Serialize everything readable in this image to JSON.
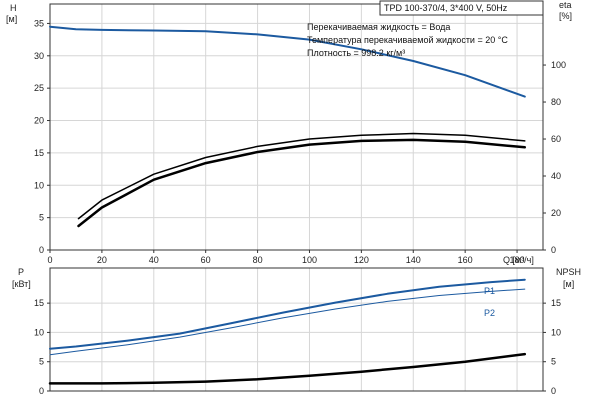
{
  "chart_data": [
    {
      "type": "line",
      "panel": "top",
      "title": "TPD 100-370/4, 3*400 V, 50Hz",
      "annotations": [
        "Перекачиваемая жидкость = Вода",
        "Температура перекачиваемой жидкости = 20 °C",
        "Плотность = 998.2 кг/м³"
      ],
      "xlabel": "Q [м³/ч]",
      "ylabel_left": [
        "H",
        "[м]"
      ],
      "ylabel_right": [
        "eta",
        "[%]"
      ],
      "xlim": [
        0,
        190
      ],
      "ylim_left": [
        0,
        38
      ],
      "ylim_right": [
        0,
        133
      ],
      "xticks": [
        0,
        20,
        40,
        60,
        80,
        100,
        120,
        140,
        160,
        180
      ],
      "yticks_left": [
        0,
        5,
        10,
        15,
        20,
        25,
        30,
        35
      ],
      "yticks_right": [
        0,
        20,
        40,
        60,
        80,
        100
      ],
      "grid": true,
      "series": [
        {
          "axis": "left",
          "color": "#1c5aa0",
          "width": 2,
          "x": [
            0,
            10,
            20,
            40,
            60,
            80,
            100,
            120,
            140,
            160,
            183
          ],
          "y": [
            34.5,
            34.1,
            34.0,
            33.9,
            33.8,
            33.3,
            32.5,
            31.0,
            29.2,
            27.0,
            23.7
          ]
        },
        {
          "axis": "right",
          "color": "#000000",
          "width": 1.5,
          "x": [
            11,
            20,
            40,
            60,
            80,
            100,
            120,
            140,
            160,
            183
          ],
          "y": [
            17,
            27,
            41,
            50,
            56,
            60,
            62,
            63,
            62,
            59
          ]
        },
        {
          "axis": "right",
          "color": "#000000",
          "width": 2.5,
          "x": [
            11,
            20,
            40,
            60,
            80,
            100,
            120,
            140,
            160,
            183
          ],
          "y": [
            13,
            23,
            38,
            47,
            53,
            57,
            59,
            59.5,
            58.5,
            55.5
          ]
        }
      ]
    },
    {
      "type": "line",
      "panel": "bottom",
      "xlim": [
        0,
        190
      ],
      "ylabel_left": [
        "P",
        "[кВт]"
      ],
      "ylabel_right": [
        "NPSH",
        "[м]"
      ],
      "ylim_left": [
        0,
        21
      ],
      "ylim_right": [
        0,
        21
      ],
      "yticks_left": [
        0,
        5,
        10,
        15
      ],
      "yticks_right": [
        0,
        5,
        10,
        15
      ],
      "grid": true,
      "series": [
        {
          "name": "P1",
          "axis": "left",
          "color": "#1c5aa0",
          "width": 2,
          "x": [
            0,
            10,
            30,
            50,
            70,
            90,
            110,
            130,
            150,
            170,
            183
          ],
          "y": [
            7.2,
            7.6,
            8.6,
            9.8,
            11.6,
            13.4,
            15.1,
            16.6,
            17.8,
            18.6,
            19.0
          ]
        },
        {
          "name": "P2",
          "axis": "left",
          "color": "#1c5aa0",
          "width": 1,
          "x": [
            0,
            10,
            30,
            50,
            70,
            90,
            110,
            130,
            150,
            170,
            183
          ],
          "y": [
            6.2,
            6.8,
            7.9,
            9.2,
            10.8,
            12.5,
            14.0,
            15.3,
            16.3,
            17.0,
            17.4
          ]
        },
        {
          "axis": "right",
          "color": "#000000",
          "width": 2.5,
          "x": [
            0,
            20,
            40,
            60,
            80,
            100,
            120,
            140,
            160,
            183
          ],
          "y": [
            1.3,
            1.3,
            1.4,
            1.6,
            2.0,
            2.6,
            3.3,
            4.1,
            5.0,
            6.3
          ]
        }
      ]
    }
  ]
}
